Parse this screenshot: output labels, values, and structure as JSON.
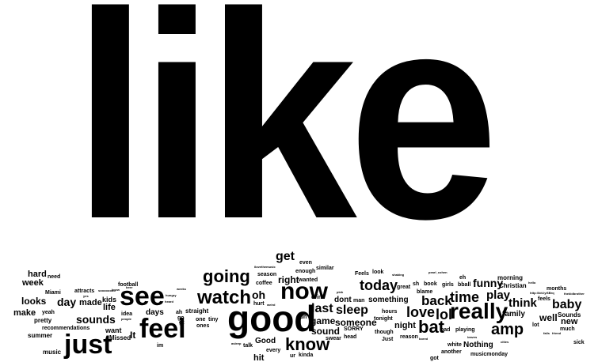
{
  "background_color": "#ffffff",
  "text_color": "#000000",
  "words": {
    "like": "like",
    "good": "good",
    "just": "just",
    "feel": "feel",
    "see": "see",
    "now": "now",
    "watch": "watch",
    "really": "really",
    "going": "going",
    "know": "know",
    "bat": "bat",
    "amp": "amp",
    "time": "time",
    "love": "love",
    "lol": "lol",
    "today": "today",
    "back": "back",
    "sleep": "sleep",
    "last": "last",
    "get": "get",
    "baby": "baby",
    "think": "think",
    "play": "play",
    "funny": "funny",
    "oh": "oh",
    "right": "right",
    "sounds": "sounds",
    "day": "day",
    "looks": "looks",
    "hard": "hard",
    "week": "week",
    "game": "game",
    "sound": "sound",
    "someone": "someone",
    "something": "something",
    "night": "night",
    "hit": "hit",
    "It": "It",
    "well": "well",
    "new": "new",
    "days": "days",
    "made": "made",
    "life": "life",
    "kids": "kids",
    "make": "make",
    "family": "family",
    "Nothing": "Nothing",
    "dont": "dont",
    "Good": "Good",
    "Sounds": "Sounds",
    "morning": "morning",
    "Christian": "Christian",
    "want": "want",
    "Missed": "Missed",
    "pretty": "pretty",
    "summer": "summer",
    "music": "music",
    "recommendations": "recommendations",
    "football": "football",
    "Miami": "Miami",
    "attracts": "attracts",
    "idea": "idea",
    "need": "need",
    "yeah": "yeah",
    "one": "one",
    "ones": "ones",
    "straight": "straight",
    "tiny": "tiny",
    "gt": "gt",
    "go": "go",
    "ah": "ah",
    "im": "im",
    "talk": "talk",
    "every": "every",
    "ur": "ur",
    "kinda": "kinda",
    "run": "run",
    "hurt": "hurt",
    "coffee": "coffee",
    "season": "season",
    "enough": "enough",
    "even": "even",
    "similar": "similar",
    "wanted": "wanted",
    "drink": "drink",
    "Feels": "Feels",
    "look": "look",
    "man": "man",
    "head": "head",
    "swear": "swear",
    "SORRY": "SORRY",
    "though": "though",
    "Just": "Just",
    "reason": "reason",
    "tonight": "tonight",
    "hours": "hours",
    "great": "great",
    "sh": "sh",
    "book": "book",
    "girls": "girls",
    "bball": "bball",
    "eh": "eh",
    "blame": "blame",
    "bad": "bad",
    "playing": "playing",
    "white": "white",
    "another": "another",
    "got": "got",
    "musicmonday": "musicmonday",
    "feels": "feels",
    "months": "months",
    "lot": "lot",
    "much": "much",
    "sick": "sick"
  },
  "tiny_words": {
    "gomorrow": "soooooooo",
    "yes": "yes",
    "beer": "beer",
    "knew": "knew",
    "hungry": "hungry",
    "weeks": "weeks",
    "people": "people",
    "heard": "heard",
    "tag": "ilovethemusic",
    "shaking": "shaking",
    "pearl": "pearl_cohen",
    "hello": "hello",
    "url": "http://bit.ly/6Brq",
    "user": "thekidbrother",
    "fails": "fails",
    "friend": "friend",
    "cities": "cities",
    "leaves": "leaves",
    "bored": "bored",
    "pink": "pink",
    "asleep": "asleep",
    "weird": "weird"
  }
}
